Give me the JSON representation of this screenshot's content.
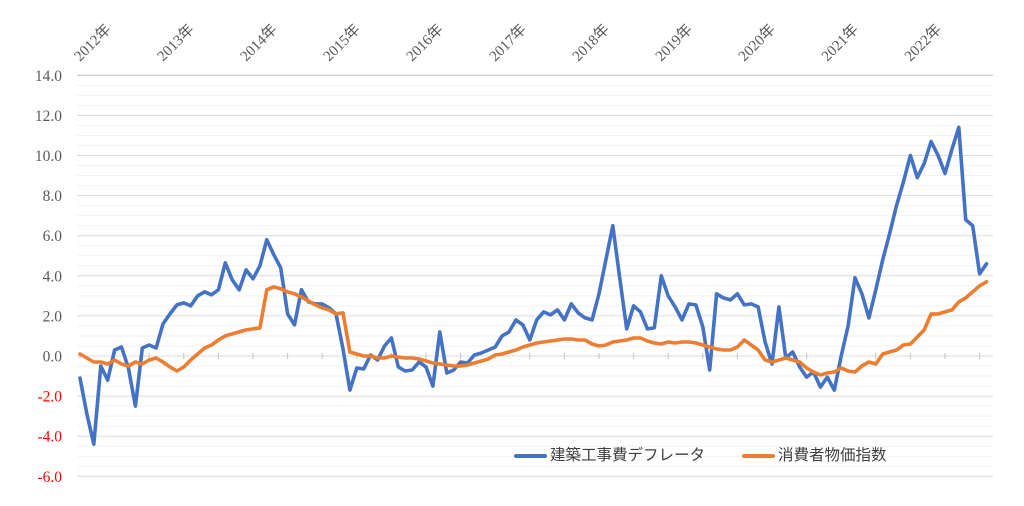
{
  "chart_data": {
    "type": "line",
    "title": "",
    "x": {
      "start": "2012-01",
      "frequency": "monthly",
      "n_points": 132,
      "year_tick_labels": [
        "2012年",
        "2013年",
        "2014年",
        "2015年",
        "2016年",
        "2017年",
        "2018年",
        "2019年",
        "2020年",
        "2021年",
        "2022年"
      ]
    },
    "ylabel": "",
    "xlabel": "",
    "ylim": [
      -6.0,
      14.0
    ],
    "y_major_step": 2.0,
    "y_minor_step": 0.5,
    "y_tick_labels": [
      "14.0",
      "12.0",
      "10.0",
      "8.0",
      "6.0",
      "4.0",
      "2.0",
      "0.0",
      "-2.0",
      "-4.0",
      "-6.0"
    ],
    "grid": true,
    "legend_position": "inside-bottom-right",
    "series": [
      {
        "name": "建築工事費デフレータ",
        "color": "#4472C4",
        "values": [
          -1.1,
          -2.9,
          -4.4,
          -0.5,
          -1.2,
          0.3,
          0.45,
          -0.6,
          -2.5,
          0.4,
          0.55,
          0.4,
          1.6,
          2.1,
          2.55,
          2.65,
          2.5,
          3.0,
          3.2,
          3.05,
          3.3,
          4.65,
          3.8,
          3.3,
          4.3,
          3.85,
          4.5,
          5.8,
          5.05,
          4.4,
          2.1,
          1.55,
          3.3,
          2.7,
          2.6,
          2.6,
          2.4,
          2.1,
          0.35,
          -1.7,
          -0.6,
          -0.65,
          0.05,
          -0.2,
          0.5,
          0.9,
          -0.55,
          -0.75,
          -0.7,
          -0.3,
          -0.55,
          -1.5,
          1.2,
          -0.85,
          -0.7,
          -0.3,
          -0.35,
          0.05,
          0.15,
          0.3,
          0.45,
          1.0,
          1.2,
          1.8,
          1.55,
          0.8,
          1.8,
          2.2,
          2.05,
          2.3,
          1.8,
          2.6,
          2.15,
          1.9,
          1.8,
          3.1,
          4.8,
          6.5,
          3.9,
          1.35,
          2.5,
          2.2,
          1.35,
          1.4,
          4.0,
          3.0,
          2.45,
          1.8,
          2.6,
          2.55,
          1.45,
          -0.7,
          3.1,
          2.9,
          2.8,
          3.1,
          2.55,
          2.6,
          2.45,
          0.7,
          -0.4,
          2.45,
          -0.1,
          0.2,
          -0.55,
          -1.05,
          -0.8,
          -1.55,
          -1.05,
          -1.7,
          0.0,
          1.5,
          3.9,
          3.1,
          1.9,
          3.3,
          4.8,
          6.1,
          7.5,
          8.7,
          10.0,
          8.9,
          9.6,
          10.7,
          10.0,
          9.1,
          10.3,
          11.4,
          6.8,
          6.5,
          4.1,
          4.6
        ]
      },
      {
        "name": "消費者物価指数",
        "color": "#ED7D31",
        "values": [
          0.1,
          -0.1,
          -0.3,
          -0.3,
          -0.4,
          -0.2,
          -0.4,
          -0.5,
          -0.3,
          -0.4,
          -0.2,
          -0.1,
          -0.3,
          -0.55,
          -0.75,
          -0.55,
          -0.2,
          0.1,
          0.4,
          0.55,
          0.8,
          1.0,
          1.1,
          1.2,
          1.3,
          1.35,
          1.4,
          3.3,
          3.45,
          3.35,
          3.2,
          3.1,
          2.95,
          2.75,
          2.55,
          2.4,
          2.3,
          2.1,
          2.15,
          0.2,
          0.1,
          0.0,
          0.0,
          -0.1,
          -0.1,
          0.0,
          -0.05,
          -0.1,
          -0.1,
          -0.15,
          -0.25,
          -0.35,
          -0.4,
          -0.45,
          -0.5,
          -0.5,
          -0.45,
          -0.35,
          -0.25,
          -0.15,
          0.05,
          0.1,
          0.2,
          0.3,
          0.45,
          0.55,
          0.65,
          0.7,
          0.75,
          0.8,
          0.85,
          0.85,
          0.8,
          0.8,
          0.6,
          0.5,
          0.55,
          0.7,
          0.75,
          0.8,
          0.9,
          0.9,
          0.75,
          0.65,
          0.6,
          0.7,
          0.65,
          0.7,
          0.7,
          0.65,
          0.55,
          0.45,
          0.35,
          0.3,
          0.3,
          0.45,
          0.8,
          0.55,
          0.3,
          -0.2,
          -0.3,
          -0.2,
          -0.1,
          -0.2,
          -0.3,
          -0.6,
          -0.8,
          -0.95,
          -0.85,
          -0.8,
          -0.6,
          -0.75,
          -0.8,
          -0.5,
          -0.3,
          -0.4,
          0.1,
          0.2,
          0.3,
          0.55,
          0.6,
          0.95,
          1.3,
          2.1,
          2.1,
          2.2,
          2.3,
          2.7,
          2.9,
          3.2,
          3.5,
          3.7
        ]
      }
    ]
  },
  "axis_style": {
    "label_color": "#595959",
    "negative_label_color": "#FF0000",
    "major_grid_color": "#DCDCDC",
    "minor_grid_color": "#F2F2F2",
    "top_border_color": "#BDBDBD",
    "tick_color": "#C3C3C3"
  },
  "legend": {
    "items": [
      {
        "label": "建築工事費デフレータ",
        "color": "#4472C4"
      },
      {
        "label": "消費者物価指数",
        "color": "#ED7D31"
      }
    ]
  }
}
